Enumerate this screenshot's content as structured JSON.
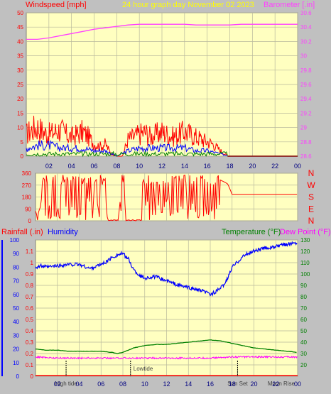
{
  "colors": {
    "background": "#c0c0c0",
    "plot_bg": "#ffffc0",
    "grid": "#b8b89c",
    "wind": "#ff0000",
    "wind_gust": "#ff0000",
    "wind_blue": "#0000ff",
    "wind_green": "#008000",
    "barometer": "#ff40ff",
    "direction": "#ff0000",
    "rain": "#ff0000",
    "humidity": "#0000ff",
    "temperature": "#008000",
    "dewpoint": "#ff00ff",
    "marker": "#000000",
    "zero_line": "#800000"
  },
  "header": {
    "title": "24 hour graph day   November 02 2023"
  },
  "x_ticks": [
    "02",
    "04",
    "06",
    "08",
    "10",
    "12",
    "14",
    "16",
    "18",
    "20",
    "22",
    "00"
  ],
  "chart_data": [
    {
      "type": "line",
      "title": "24 hour graph day   November 02 2023",
      "ylabel": "Windspeed [mph]",
      "ylabel_right": "Barometer [.in]",
      "ylim": [
        0,
        50
      ],
      "ylim_right": [
        28.6,
        30.6
      ],
      "yticks_left": [
        "0",
        "5",
        "10",
        "15",
        "20",
        "25",
        "30",
        "35",
        "40",
        "45",
        "50"
      ],
      "yticks_right": [
        "28.6",
        "28.8",
        "29",
        "29.2",
        "29.4",
        "29.6",
        "29.8",
        "30",
        "30.2",
        "30.4",
        "30.6"
      ],
      "xlim_hours": [
        0,
        24
      ],
      "series": [
        {
          "key": "barometer",
          "x": [
            0,
            1,
            2,
            3,
            4,
            5,
            6,
            7,
            8,
            9,
            10,
            11,
            12,
            13,
            14,
            15,
            16,
            17,
            18,
            19,
            20,
            21,
            22,
            23,
            24
          ],
          "y": [
            30.23,
            30.23,
            30.25,
            30.28,
            30.31,
            30.34,
            30.37,
            30.39,
            30.41,
            30.43,
            30.44,
            30.44,
            30.44,
            30.44,
            30.44,
            30.43,
            30.43,
            30.43,
            30.43,
            30.44,
            30.44,
            30.44,
            30.44,
            30.44,
            30.44
          ]
        },
        {
          "key": "wind_gust",
          "x": [
            0,
            0.5,
            1,
            1.5,
            2,
            2.5,
            3,
            3.5,
            4,
            4.5,
            5,
            5.5,
            6,
            6.5,
            7,
            7.5,
            8,
            8.5,
            9,
            9.5,
            10,
            10.5,
            11,
            11.5,
            12,
            12.5,
            13,
            13.5,
            14,
            14.5,
            15,
            15.5,
            16,
            16.5,
            17,
            17.5,
            18,
            24
          ],
          "y": [
            9,
            11,
            12,
            10,
            9,
            10,
            11,
            9,
            8,
            9,
            10,
            8,
            5,
            4,
            5,
            1,
            0,
            0,
            7,
            8,
            9,
            10,
            8,
            9,
            10,
            9,
            8,
            9,
            10,
            9,
            8,
            7,
            6,
            5,
            3,
            1,
            0,
            0
          ]
        },
        {
          "key": "wind_avg",
          "x": [
            0,
            1,
            2,
            3,
            4,
            5,
            6,
            7,
            8,
            9,
            10,
            11,
            12,
            13,
            14,
            15,
            16,
            17,
            18,
            24
          ],
          "y": [
            3,
            4,
            4,
            3,
            3,
            3,
            2,
            2,
            0,
            2,
            3,
            3,
            3,
            3,
            3,
            2,
            2,
            1,
            0,
            0
          ]
        }
      ]
    },
    {
      "type": "line",
      "ylabel_right": [
        "N",
        "W",
        "S",
        "E",
        "N"
      ],
      "ylim": [
        0,
        360
      ],
      "yticks_left": [
        "0",
        "90",
        "180",
        "270",
        "360"
      ],
      "xlim_hours": [
        0,
        24
      ],
      "series": [
        {
          "key": "direction",
          "x": [
            0,
            1,
            2,
            3,
            4,
            5,
            6,
            7,
            8,
            9,
            10,
            11,
            12,
            13,
            14,
            15,
            16,
            16.9,
            17.6,
            18,
            20,
            22,
            24
          ],
          "y": [
            330,
            310,
            320,
            300,
            330,
            300,
            310,
            320,
            0,
            0,
            300,
            310,
            320,
            300,
            310,
            320,
            300,
            310,
            280,
            200,
            200,
            200,
            200
          ]
        }
      ]
    },
    {
      "type": "line",
      "ylabel": "Rainfall (.in)",
      "ylabel_humidity": "Humidity",
      "ylabel_temp": "Temperature (°F)",
      "ylabel_dew": "Dew Point (°F)",
      "ylim_humidity": [
        0,
        100
      ],
      "ylim_rain": [
        0,
        1.2
      ],
      "ylim_temp": [
        10,
        130
      ],
      "yticks_humidity": [
        "0",
        "10",
        "20",
        "30",
        "40",
        "50",
        "60",
        "70",
        "80",
        "90",
        "100"
      ],
      "yticks_rain": [
        "0",
        "0.1",
        "0.2",
        "0.3",
        "0.4",
        "0.5",
        "0.6",
        "0.7",
        "0.8",
        "0.9",
        "1",
        "1.1"
      ],
      "yticks_temp": [
        "20",
        "30",
        "40",
        "50",
        "60",
        "70",
        "80",
        "90",
        "100",
        "110",
        "120",
        "130"
      ],
      "xlim_hours": [
        0,
        24
      ],
      "series": [
        {
          "key": "humidity",
          "x": [
            0,
            0.5,
            1,
            2,
            3,
            4,
            5,
            6,
            6.5,
            7,
            7.5,
            8,
            8.5,
            9,
            9.5,
            10,
            11,
            12,
            13,
            14,
            15,
            15.5,
            16,
            16.5,
            17,
            17.5,
            18,
            19,
            20,
            21,
            22,
            23,
            24
          ],
          "y": [
            80,
            81,
            80,
            81,
            82,
            82,
            79,
            82,
            84,
            87,
            89,
            90,
            86,
            78,
            74,
            72,
            73,
            70,
            67,
            65,
            63,
            62,
            60,
            62,
            65,
            70,
            80,
            88,
            92,
            94,
            95,
            97,
            98
          ]
        },
        {
          "key": "temperature",
          "x": [
            0,
            1,
            2,
            3,
            4,
            5,
            6,
            7,
            7.5,
            8,
            8.5,
            9,
            10,
            11,
            12,
            13,
            14,
            15,
            16,
            17,
            18,
            19,
            20,
            21,
            22,
            23,
            24
          ],
          "y": [
            34,
            33,
            33,
            32,
            32,
            32,
            32,
            31,
            30,
            31,
            33,
            35,
            37,
            38,
            38,
            39,
            40,
            41,
            42,
            41,
            39,
            37,
            35,
            34,
            33,
            32,
            31
          ]
        },
        {
          "key": "dewpoint",
          "x": [
            0,
            2,
            4,
            6,
            8,
            10,
            12,
            14,
            16,
            18,
            20,
            22,
            24
          ],
          "y": [
            27,
            26,
            26,
            26,
            26,
            26,
            26,
            26,
            26,
            27,
            27,
            27,
            27
          ]
        },
        {
          "key": "rain",
          "x": [
            0,
            24
          ],
          "y": [
            0,
            0
          ]
        }
      ],
      "annotations": [
        {
          "label": "High tide",
          "hour": 2.8
        },
        {
          "label": "Lowtide",
          "hour": 8.7
        },
        {
          "label": "Sun Set",
          "hour": 18.5
        },
        {
          "label": "Moon Rise",
          "hour": 22.5
        }
      ]
    }
  ]
}
